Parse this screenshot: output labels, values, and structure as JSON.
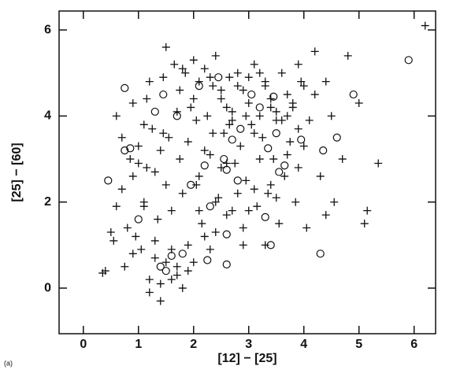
{
  "chart_data": {
    "type": "scatter",
    "x_label": "[12] − [25]",
    "y_label": "[25] − [60]",
    "panel_label": "(a)",
    "xlim": [
      -0.44,
      6.39
    ],
    "ylim": [
      -1.06,
      6.44
    ],
    "xticks": [
      0,
      1,
      2,
      3,
      4,
      5,
      6
    ],
    "yticks": [
      0,
      2,
      4,
      6
    ],
    "color": "#111111",
    "series": [
      {
        "marker": "plus",
        "x": [
          0.35,
          0.4,
          0.5,
          0.55,
          0.6,
          0.7,
          0.75,
          0.8,
          0.85,
          0.9,
          0.95,
          1.0,
          1.05,
          1.1,
          1.15,
          1.2,
          1.25,
          1.3,
          1.35,
          1.4,
          1.45,
          1.5,
          1.55,
          1.6,
          1.65,
          1.7,
          1.75,
          1.8,
          1.85,
          1.9,
          1.95,
          2.0,
          2.05,
          2.1,
          2.15,
          2.2,
          2.25,
          2.3,
          2.35,
          2.4,
          2.45,
          2.5,
          2.55,
          2.6,
          2.65,
          2.7,
          2.75,
          2.8,
          2.85,
          2.9,
          2.95,
          3.0,
          3.05,
          3.1,
          3.15,
          3.2,
          3.25,
          3.3,
          3.35,
          3.4,
          3.45,
          3.5,
          3.55,
          3.6,
          3.65,
          3.7,
          3.75,
          3.8,
          3.85,
          3.9,
          3.95,
          4.0,
          4.05,
          4.1,
          4.2,
          4.3,
          4.4,
          4.5,
          4.55,
          4.7,
          4.8,
          5.0,
          5.1,
          5.15,
          5.35,
          6.2,
          0.6,
          0.7,
          0.9,
          1.0,
          1.1,
          1.2,
          1.3,
          1.4,
          1.5,
          1.6,
          1.7,
          1.8,
          1.9,
          2.0,
          2.1,
          2.2,
          2.3,
          2.4,
          2.5,
          2.6,
          2.7,
          2.8,
          2.9,
          3.0,
          3.1,
          3.2,
          3.3,
          3.4,
          3.5,
          3.6,
          3.7,
          3.8,
          3.9,
          4.0,
          4.2,
          4.4,
          0.9,
          1.1,
          1.3,
          1.5,
          1.7,
          1.9,
          2.1,
          2.3,
          2.5,
          2.7,
          2.9,
          3.1,
          3.3,
          3.5,
          3.7,
          3.9,
          1.2,
          1.4,
          1.6,
          1.8,
          2.0,
          2.2,
          2.4,
          2.6,
          2.8,
          3.0,
          3.2,
          3.4,
          1.15,
          1.45,
          1.75,
          2.05,
          2.35,
          2.65,
          2.95
        ],
        "values": [
          0.35,
          0.4,
          1.3,
          1.1,
          1.9,
          2.3,
          0.5,
          1.4,
          3.0,
          2.6,
          1.2,
          3.3,
          0.9,
          2.0,
          4.4,
          0.2,
          3.7,
          2.7,
          1.6,
          0.1,
          4.9,
          0.6,
          3.5,
          1.8,
          5.2,
          0.3,
          4.6,
          2.2,
          5.0,
          1.0,
          4.2,
          5.3,
          2.4,
          4.8,
          1.5,
          5.1,
          4.0,
          3.1,
          4.7,
          5.4,
          2.1,
          4.4,
          3.6,
          1.7,
          4.9,
          4.1,
          2.9,
          5.0,
          3.3,
          4.6,
          2.5,
          4.3,
          3.8,
          5.2,
          1.9,
          4.0,
          3.5,
          4.8,
          2.2,
          4.4,
          3.0,
          4.1,
          1.5,
          3.9,
          2.6,
          4.5,
          3.4,
          4.2,
          2.0,
          3.7,
          4.8,
          3.3,
          1.4,
          3.9,
          4.5,
          2.6,
          1.7,
          4.0,
          2.0,
          3.0,
          5.4,
          4.3,
          1.5,
          1.8,
          2.9,
          6.1,
          4.0,
          3.5,
          4.3,
          2.9,
          3.8,
          4.8,
          1.1,
          3.2,
          5.6,
          0.9,
          4.1,
          5.1,
          0.4,
          4.4,
          2.6,
          3.2,
          4.9,
          1.3,
          4.6,
          4.2,
          3.9,
          4.7,
          1.0,
          4.9,
          3.6,
          5.0,
          4.7,
          4.2,
          3.9,
          5.0,
          4.0,
          4.3,
          5.2,
          4.7,
          5.5,
          4.8,
          0.8,
          1.9,
          0.7,
          2.4,
          0.5,
          3.4,
          1.8,
          0.9,
          2.8,
          1.8,
          1.4,
          2.3,
          1.0,
          2.1,
          3.1,
          2.8,
          -0.1,
          -0.3,
          0.2,
          0.0,
          0.6,
          1.2,
          2.0,
          2.9,
          2.2,
          1.8,
          3.0,
          2.4,
          2.8,
          3.6,
          3.0,
          3.9,
          3.6,
          3.8,
          4.0
        ]
      },
      {
        "marker": "circle",
        "x": [
          0.75,
          0.75,
          0.45,
          0.85,
          1.0,
          1.3,
          1.45,
          1.5,
          1.4,
          1.6,
          1.8,
          1.95,
          2.2,
          2.25,
          2.3,
          2.45,
          2.55,
          2.6,
          2.6,
          2.6,
          2.7,
          2.85,
          2.8,
          3.05,
          3.2,
          3.3,
          3.35,
          3.4,
          3.45,
          3.5,
          3.55,
          3.65,
          3.95,
          4.3,
          4.35,
          4.6,
          4.9,
          5.9,
          1.7,
          2.1
        ],
        "values": [
          4.65,
          3.2,
          2.5,
          3.25,
          1.6,
          4.1,
          4.5,
          0.4,
          0.5,
          0.75,
          0.8,
          2.4,
          2.85,
          0.65,
          1.9,
          4.9,
          3.0,
          1.25,
          2.75,
          0.55,
          3.45,
          3.7,
          2.5,
          4.5,
          4.2,
          1.65,
          3.25,
          1.0,
          4.45,
          3.6,
          2.7,
          2.85,
          3.45,
          0.8,
          3.2,
          3.5,
          4.5,
          5.3,
          4.0,
          4.7
        ]
      }
    ]
  }
}
